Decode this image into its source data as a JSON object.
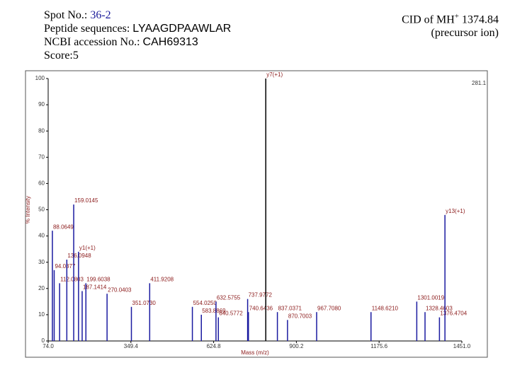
{
  "header": {
    "spot_label": "Spot No.:",
    "spot": "36-2",
    "sequence_label": "Peptide sequences:",
    "sequence": "LYAAGDPAAWLAR",
    "accession_label": "NCBI accession No.:",
    "accession": "CAH69313",
    "score": "Score:5",
    "cid_prefix": "CID of MH",
    "cid_sup": "+",
    "cid_mass": "1374.84",
    "cid_note": "(precursor ion)"
  },
  "chart_data": {
    "type": "spectrum",
    "xlabel": "Mass (m/z)",
    "ylabel": "% Intensity",
    "max_counts": "281.1",
    "xlim": [
      74,
      1451
    ],
    "ylim": [
      0,
      100
    ],
    "xticks": [
      {
        "value": 74,
        "label": "74.0"
      },
      {
        "value": 349.4,
        "label": "349.4"
      },
      {
        "value": 624.8,
        "label": "624.8"
      },
      {
        "value": 900.2,
        "label": "900.2"
      },
      {
        "value": 1175.6,
        "label": "1175.6"
      },
      {
        "value": 1451,
        "label": "1451.0"
      }
    ],
    "yticks": [
      0,
      10,
      20,
      30,
      40,
      50,
      60,
      70,
      80,
      90,
      100
    ],
    "color": "#1a1aa0",
    "label_color": "#8b1a1a",
    "x": [
      88.0649,
      94.0377,
      112.0803,
      136.0948,
      159.0145,
      175.12,
      187.1414,
      199.6038,
      270.0403,
      351.073,
      411.9208,
      554.025,
      583.8869,
      632.5755,
      640.5772,
      737.9772,
      740.6436,
      798.4,
      837.0371,
      870.7003,
      967.708,
      1148.621,
      1301.0019,
      1328.4603,
      1376.4704,
      1394.8
    ],
    "values": [
      42,
      27,
      22,
      31,
      52,
      34,
      19,
      22,
      18,
      13,
      22,
      13,
      10,
      15,
      9,
      16,
      11,
      100,
      11,
      8,
      11,
      11,
      15,
      11,
      9,
      48
    ],
    "peak_labels": [
      "88.0649",
      "94.0377",
      "112.0803",
      "136.0948",
      "159.0145",
      "y1(+1)",
      "187.1414",
      "199.6038",
      "270.0403",
      "351.0730",
      "411.9208",
      "554.0250",
      "583.8869",
      "632.5755",
      "640.5772",
      "737.9772",
      "740.6436",
      "y7(+1)",
      "837.0371",
      "870.7003",
      "967.7080",
      "1148.6210",
      "1301.0019",
      "1328.4603",
      "1376.4704",
      "y13(+1)"
    ]
  }
}
